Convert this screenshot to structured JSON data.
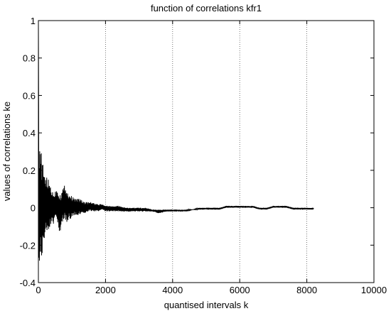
{
  "chart_data": {
    "type": "line",
    "title": "function of correlations kfr1",
    "xlabel": "quantised intervals k",
    "ylabel": "values of correlations ke",
    "xlim": [
      0,
      10000
    ],
    "ylim": [
      -0.4,
      1
    ],
    "x_ticks": [
      0,
      2000,
      4000,
      6000,
      8000,
      10000
    ],
    "x_tick_labels": [
      "0",
      "2000",
      "4000",
      "6000",
      "8000",
      "10000"
    ],
    "y_ticks": [
      -0.4,
      -0.2,
      0,
      0.2,
      0.4,
      0.6,
      0.8,
      1
    ],
    "y_tick_labels": [
      "-0.4",
      "-0.2",
      "0",
      "0.2",
      "0.4",
      "0.6",
      "0.8",
      "1"
    ],
    "grid_x": [
      2000,
      4000,
      6000,
      8000
    ],
    "series": [
      {
        "color": "#000000",
        "x": [
          0,
          20,
          40,
          60,
          80,
          100,
          130,
          160,
          200,
          250,
          300,
          350,
          400,
          450,
          500,
          550,
          600,
          650,
          700,
          750,
          800,
          850,
          900,
          950,
          1000,
          1100,
          1200,
          1300,
          1400,
          1500,
          1600,
          1700,
          1800,
          1900,
          2000,
          2200,
          2400,
          2600,
          2800,
          3000,
          3200,
          3400,
          3600,
          3800,
          4000,
          4200,
          4400,
          4600,
          4800,
          5000,
          5200,
          5400,
          5600,
          5800,
          6000,
          6200,
          6400,
          6600,
          6800,
          7000,
          7200,
          7400,
          7600,
          7800,
          8000,
          8200
        ],
        "upper": [
          1.0,
          0.35,
          0.41,
          0.32,
          0.33,
          0.24,
          0.25,
          0.18,
          0.2,
          0.16,
          0.15,
          0.13,
          0.1,
          0.08,
          0.09,
          0.11,
          0.1,
          0.08,
          0.1,
          0.11,
          0.13,
          0.09,
          0.08,
          0.07,
          0.06,
          0.05,
          0.05,
          0.04,
          0.03,
          0.03,
          0.03,
          0.02,
          0.02,
          0.02,
          0.01,
          0.01,
          0.01,
          0.0,
          0.0,
          0.0,
          0.0,
          -0.01,
          -0.01,
          -0.01,
          -0.01,
          -0.01,
          -0.01,
          -0.01,
          0.0,
          0.0,
          0.0,
          0.0,
          0.01,
          0.01,
          0.01,
          0.01,
          0.01,
          0.0,
          0.0,
          0.01,
          0.01,
          0.01,
          0.0,
          0.0,
          0.0,
          0.0
        ],
        "lower": [
          0.0,
          -0.35,
          -0.36,
          -0.26,
          -0.3,
          -0.27,
          -0.2,
          -0.22,
          -0.17,
          -0.14,
          -0.12,
          -0.1,
          -0.09,
          -0.09,
          -0.07,
          -0.08,
          -0.12,
          -0.16,
          -0.08,
          -0.07,
          -0.06,
          -0.08,
          -0.06,
          -0.06,
          -0.05,
          -0.04,
          -0.04,
          -0.03,
          -0.03,
          -0.02,
          -0.02,
          -0.02,
          -0.02,
          -0.01,
          -0.02,
          -0.02,
          -0.02,
          -0.02,
          -0.02,
          -0.02,
          -0.02,
          -0.02,
          -0.03,
          -0.02,
          -0.02,
          -0.02,
          -0.02,
          -0.01,
          -0.01,
          -0.01,
          -0.01,
          -0.01,
          0.0,
          0.0,
          0.0,
          0.0,
          0.0,
          -0.01,
          -0.01,
          0.0,
          0.0,
          0.0,
          -0.01,
          -0.01,
          -0.01,
          -0.01
        ]
      }
    ]
  }
}
